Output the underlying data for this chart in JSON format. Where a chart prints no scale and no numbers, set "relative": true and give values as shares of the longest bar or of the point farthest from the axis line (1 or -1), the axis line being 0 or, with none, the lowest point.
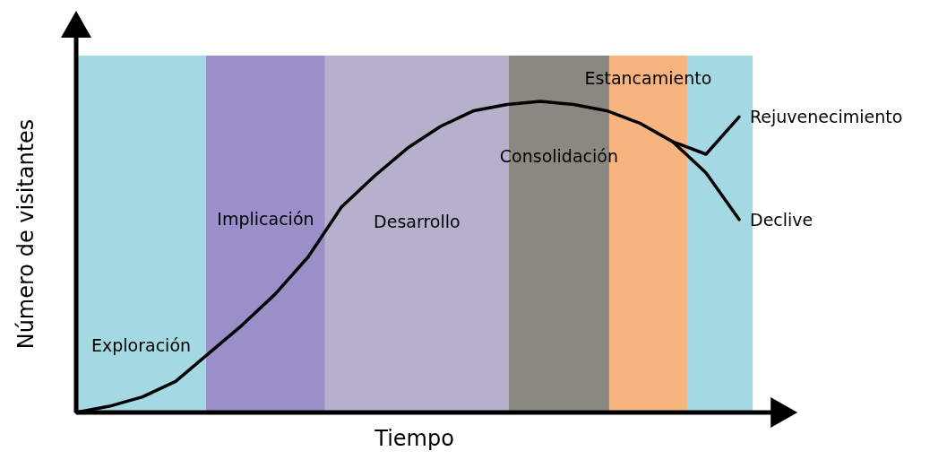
{
  "chart_data": {
    "type": "line",
    "relative": true,
    "xlabel": "Tiempo",
    "ylabel": "Número de visitantes",
    "marker": "none",
    "line_style": "solid",
    "categories": [
      null,
      null,
      null,
      null,
      null,
      null,
      null,
      null,
      null,
      null,
      null,
      null,
      null,
      null,
      null,
      null,
      null,
      null,
      null,
      null,
      null
    ],
    "annotations": [
      "Exploración",
      "Implicación",
      "Desarrollo",
      "Consolidación",
      "Estancamiento"
    ],
    "series": [
      {
        "name": "Declive",
        "color": "#000000",
        "values": [
          0,
          0.02,
          0.05,
          0.1,
          0.19,
          0.28,
          0.38,
          0.5,
          0.66,
          0.76,
          0.85,
          0.92,
          0.97,
          0.99,
          1,
          0.99,
          0.97,
          0.93,
          0.87,
          0.77,
          0.62
        ]
      },
      {
        "name": "Rejuvenecimiento",
        "color": "#000000",
        "values": [
          null,
          null,
          null,
          null,
          null,
          null,
          null,
          null,
          null,
          null,
          null,
          null,
          null,
          null,
          null,
          null,
          null,
          null,
          0.87,
          0.83,
          0.95
        ]
      }
    ]
  }
}
